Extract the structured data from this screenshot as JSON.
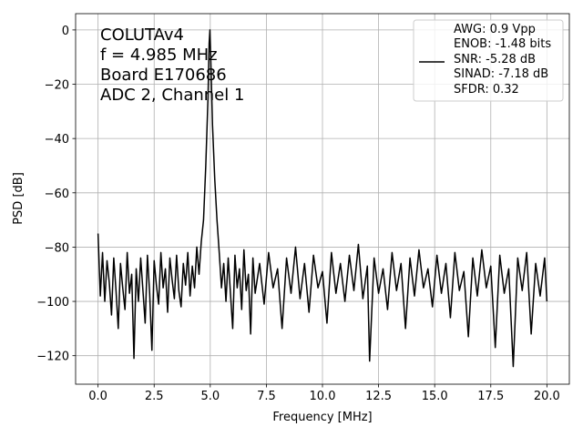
{
  "chart_data": {
    "type": "line",
    "xlabel": "Frequency [MHz]",
    "ylabel": "PSD [dB]",
    "annotations": [
      "COLUTAv4",
      "f = 4.985 MHz",
      "Board E170686",
      "ADC 2, Channel 1"
    ],
    "x": [
      0,
      0.1,
      0.2,
      0.3,
      0.4,
      0.5,
      0.6,
      0.7,
      0.8,
      0.9,
      1.0,
      1.1,
      1.2,
      1.3,
      1.4,
      1.5,
      1.6,
      1.7,
      1.8,
      1.9,
      2.0,
      2.1,
      2.2,
      2.3,
      2.4,
      2.5,
      2.6,
      2.7,
      2.8,
      2.9,
      3.0,
      3.1,
      3.2,
      3.3,
      3.4,
      3.5,
      3.6,
      3.7,
      3.8,
      3.9,
      4.0,
      4.1,
      4.2,
      4.3,
      4.4,
      4.5,
      4.6,
      4.7,
      4.8,
      4.9,
      4.95,
      4.985,
      5.02,
      5.1,
      5.2,
      5.3,
      5.4,
      5.5,
      5.6,
      5.7,
      5.8,
      5.9,
      6.0,
      6.1,
      6.2,
      6.3,
      6.4,
      6.5,
      6.6,
      6.7,
      6.8,
      6.9,
      7.0,
      7.2,
      7.4,
      7.6,
      7.8,
      8.0,
      8.2,
      8.4,
      8.6,
      8.8,
      9.0,
      9.2,
      9.4,
      9.6,
      9.8,
      10.0,
      10.2,
      10.4,
      10.6,
      10.8,
      11.0,
      11.2,
      11.4,
      11.6,
      11.8,
      12.0,
      12.1,
      12.3,
      12.5,
      12.7,
      12.9,
      13.1,
      13.3,
      13.5,
      13.7,
      13.9,
      14.1,
      14.3,
      14.5,
      14.7,
      14.9,
      15.1,
      15.3,
      15.5,
      15.7,
      15.9,
      16.1,
      16.3,
      16.5,
      16.7,
      16.9,
      17.1,
      17.3,
      17.5,
      17.7,
      17.9,
      18.1,
      18.3,
      18.5,
      18.7,
      18.9,
      19.1,
      19.3,
      19.5,
      19.7,
      19.9,
      20.0
    ],
    "series": [
      {
        "name": "AWG: 0.9 Vpp\nENOB: -1.48 bits\nSNR: -5.28 dB\nSINAD: -7.18 dB\nSFDR: 0.32",
        "color": "#000000",
        "values": [
          -75,
          -98,
          -82,
          -100,
          -85,
          -93,
          -105,
          -84,
          -96,
          -110,
          -86,
          -95,
          -103,
          -82,
          -97,
          -90,
          -121,
          -88,
          -100,
          -84,
          -96,
          -108,
          -83,
          -97,
          -118,
          -85,
          -94,
          -101,
          -82,
          -95,
          -88,
          -104,
          -84,
          -92,
          -99,
          -83,
          -96,
          -102,
          -86,
          -94,
          -82,
          -98,
          -87,
          -95,
          -80,
          -90,
          -78,
          -70,
          -50,
          -25,
          -5,
          0,
          -10,
          -35,
          -55,
          -70,
          -82,
          -95,
          -86,
          -100,
          -84,
          -97,
          -110,
          -83,
          -95,
          -88,
          -103,
          -81,
          -96,
          -90,
          -112,
          -84,
          -97,
          -86,
          -101,
          -82,
          -95,
          -88,
          -110,
          -84,
          -97,
          -80,
          -99,
          -86,
          -104,
          -83,
          -95,
          -89,
          -108,
          -82,
          -97,
          -86,
          -100,
          -83,
          -96,
          -79,
          -99,
          -87,
          -122,
          -84,
          -97,
          -88,
          -103,
          -82,
          -96,
          -86,
          -110,
          -84,
          -98,
          -81,
          -95,
          -88,
          -102,
          -83,
          -97,
          -86,
          -106,
          -82,
          -96,
          -89,
          -113,
          -84,
          -98,
          -81,
          -95,
          -87,
          -117,
          -83,
          -97,
          -88,
          -124,
          -84,
          -96,
          -82,
          -112,
          -86,
          -98,
          -84,
          -100
        ]
      }
    ],
    "xlim": [
      -1,
      21
    ],
    "ylim": [
      -130.5,
      6
    ],
    "xticks": [
      {
        "value": 0,
        "label": "0.0"
      },
      {
        "value": 2.5,
        "label": "2.5"
      },
      {
        "value": 5,
        "label": "5.0"
      },
      {
        "value": 7.5,
        "label": "7.5"
      },
      {
        "value": 10,
        "label": "10.0"
      },
      {
        "value": 12.5,
        "label": "12.5"
      },
      {
        "value": 15,
        "label": "15.0"
      },
      {
        "value": 17.5,
        "label": "17.5"
      },
      {
        "value": 20,
        "label": "20.0"
      }
    ],
    "yticks": [
      0,
      {
        "value": -20,
        "label": "−20"
      },
      {
        "value": -40,
        "label": "−40"
      },
      {
        "value": -60,
        "label": "−60"
      },
      {
        "value": -80,
        "label": "−80"
      },
      {
        "value": -100,
        "label": "−100"
      },
      {
        "value": -120,
        "label": "−120"
      }
    ],
    "grid": true,
    "legend": "upper right"
  }
}
